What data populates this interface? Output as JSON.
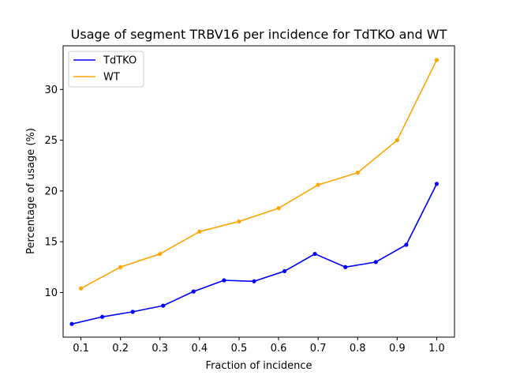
{
  "chart_data": {
    "type": "line",
    "title": "Usage of segment TRBV16 per incidence for TdTKO and WT",
    "xlabel": "Fraction of incidence",
    "ylabel": "Percentage of usage (%)",
    "xlim": [
      0.055,
      1.045
    ],
    "ylim": [
      5.6,
      34.3
    ],
    "xticks": [
      0.1,
      0.2,
      0.3,
      0.4,
      0.5,
      0.6,
      0.7,
      0.8,
      0.9,
      1.0
    ],
    "xtick_labels": [
      "0.1",
      "0.2",
      "0.3",
      "0.4",
      "0.5",
      "0.6",
      "0.7",
      "0.8",
      "0.9",
      "1.0"
    ],
    "yticks": [
      10,
      15,
      20,
      25,
      30
    ],
    "ytick_labels": [
      "10",
      "15",
      "20",
      "25",
      "30"
    ],
    "grid": false,
    "legend_position": "top-left",
    "series": [
      {
        "name": "TdTKO",
        "color": "#0000ff",
        "x": [
          0.077,
          0.154,
          0.231,
          0.308,
          0.385,
          0.462,
          0.538,
          0.615,
          0.692,
          0.769,
          0.846,
          0.923,
          1.0
        ],
        "y": [
          6.9,
          7.6,
          8.1,
          8.7,
          10.1,
          11.2,
          11.1,
          12.1,
          13.8,
          12.5,
          13.0,
          14.7,
          20.7
        ]
      },
      {
        "name": "WT",
        "color": "#ffa500",
        "x": [
          0.1,
          0.2,
          0.3,
          0.4,
          0.5,
          0.6,
          0.7,
          0.8,
          0.9,
          1.0
        ],
        "y": [
          10.4,
          12.5,
          13.8,
          16.0,
          17.0,
          18.3,
          20.6,
          21.8,
          25.0,
          32.9
        ]
      }
    ]
  }
}
